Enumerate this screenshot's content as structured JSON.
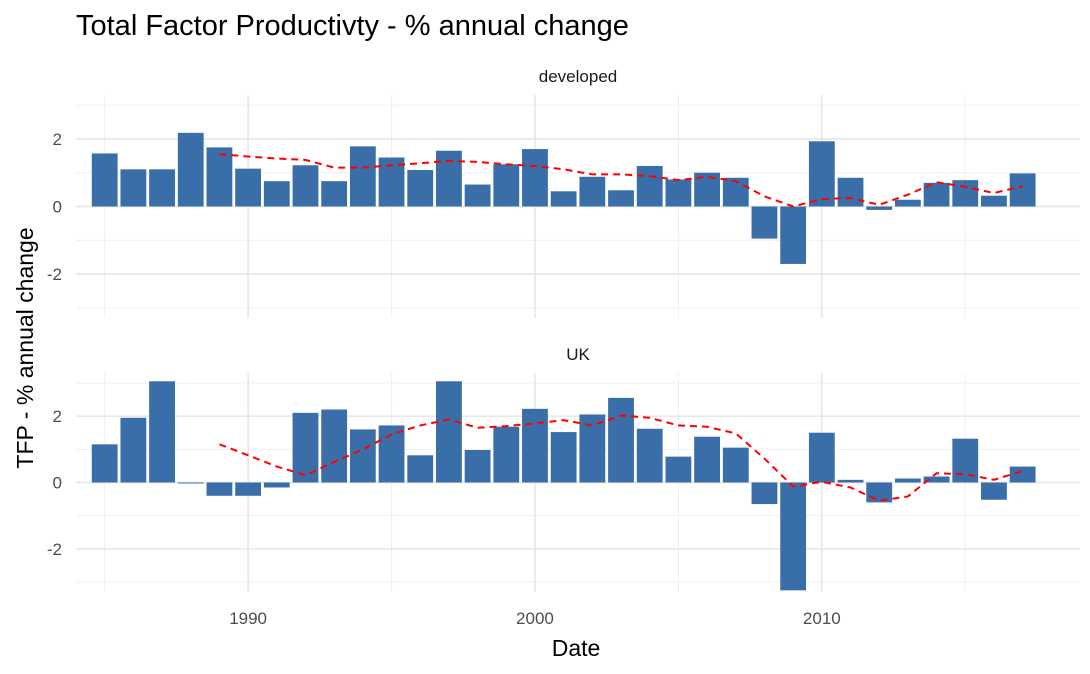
{
  "chart_data": {
    "type": "bar",
    "title": "Total Factor Productivty - % annual change",
    "xlabel": "Date",
    "ylabel": "TFP - % annual change",
    "xlim": [
      1984,
      2019
    ],
    "ylim": [
      -3.3,
      3.3
    ],
    "x_ticks": [
      1990,
      2000,
      2010
    ],
    "y_ticks": [
      -2,
      0,
      2
    ],
    "grid": true,
    "colors": {
      "bar": "#3A6EA8",
      "trend": "#FF0000",
      "grid": "#E6E6E6"
    },
    "years": [
      1985,
      1986,
      1987,
      1988,
      1989,
      1990,
      1991,
      1992,
      1993,
      1994,
      1995,
      1996,
      1997,
      1998,
      1999,
      2000,
      2001,
      2002,
      2003,
      2004,
      2005,
      2006,
      2007,
      2008,
      2009,
      2010,
      2011,
      2012,
      2013,
      2014,
      2015,
      2016,
      2017
    ],
    "panels": [
      {
        "label": "developed",
        "values": [
          1.57,
          1.1,
          1.1,
          2.18,
          1.75,
          1.12,
          0.75,
          1.22,
          0.75,
          1.78,
          1.45,
          1.08,
          1.65,
          0.65,
          1.25,
          1.7,
          0.45,
          0.88,
          0.48,
          1.2,
          0.8,
          1.0,
          0.85,
          -0.95,
          -1.7,
          1.93,
          0.85,
          -0.1,
          0.2,
          0.7,
          0.78,
          0.32,
          0.98
        ],
        "trend": {
          "x": [
            1989,
            1990,
            1991,
            1992,
            1993,
            1994,
            1995,
            1996,
            1997,
            1998,
            1999,
            2000,
            2001,
            2002,
            2003,
            2004,
            2005,
            2006,
            2007,
            2008,
            2009,
            2010,
            2011,
            2012,
            2013,
            2014,
            2015,
            2016,
            2017
          ],
          "y": [
            1.55,
            1.48,
            1.42,
            1.38,
            1.15,
            1.15,
            1.22,
            1.28,
            1.35,
            1.32,
            1.25,
            1.2,
            1.1,
            0.95,
            0.95,
            0.9,
            0.78,
            0.88,
            0.75,
            0.3,
            0.0,
            0.22,
            0.25,
            0.05,
            0.35,
            0.72,
            0.58,
            0.4,
            0.6
          ]
        }
      },
      {
        "label": "UK",
        "values": [
          1.15,
          1.95,
          3.05,
          0.0,
          -0.4,
          -0.4,
          -0.15,
          2.1,
          2.2,
          1.6,
          1.72,
          0.82,
          3.05,
          0.98,
          1.68,
          2.22,
          1.52,
          2.05,
          2.55,
          1.62,
          0.78,
          1.38,
          1.05,
          -0.65,
          -3.25,
          1.5,
          0.08,
          -0.6,
          0.12,
          0.18,
          1.32,
          -0.52,
          0.48
        ],
        "trend": {
          "x": [
            1989,
            1990,
            1991,
            1992,
            1993,
            1994,
            1995,
            1996,
            1997,
            1998,
            1999,
            2000,
            2001,
            2002,
            2003,
            2004,
            2005,
            2006,
            2007,
            2008,
            2009,
            2010,
            2011,
            2012,
            2013,
            2014,
            2015,
            2016,
            2017
          ],
          "y": [
            1.15,
            0.82,
            0.48,
            0.22,
            0.62,
            1.0,
            1.45,
            1.72,
            1.9,
            1.65,
            1.7,
            1.78,
            1.88,
            1.72,
            2.02,
            1.95,
            1.72,
            1.68,
            1.48,
            0.72,
            -0.12,
            0.02,
            -0.15,
            -0.55,
            -0.42,
            0.28,
            0.25,
            0.08,
            0.35
          ]
        }
      }
    ]
  }
}
